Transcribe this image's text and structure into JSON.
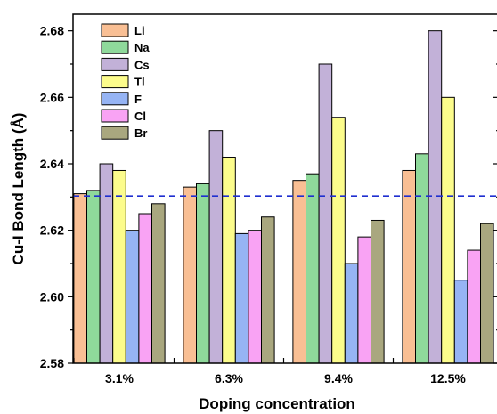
{
  "chart_data": {
    "type": "bar",
    "xlabel": "Doping concentration",
    "ylabel": "Cu-I Bond Length (Å)",
    "categories": [
      "3.1%",
      "6.3%",
      "9.4%",
      "12.5%"
    ],
    "ylim": [
      2.58,
      2.685
    ],
    "yticks": [
      "2.58",
      "2.60",
      "2.62",
      "2.64",
      "2.66",
      "2.68"
    ],
    "legend_position": "top-left",
    "grid": false,
    "reference_line": {
      "y": 2.6303,
      "style": "dashed",
      "color": "#1f2fd0"
    },
    "series": [
      {
        "name": "Li",
        "color": "#f9bf94",
        "values": [
          2.631,
          2.633,
          2.635,
          2.638
        ]
      },
      {
        "name": "Na",
        "color": "#8fd99b",
        "values": [
          2.632,
          2.634,
          2.637,
          2.643
        ]
      },
      {
        "name": "Cs",
        "color": "#c2b1d8",
        "values": [
          2.64,
          2.65,
          2.67,
          2.68
        ]
      },
      {
        "name": "Tl",
        "color": "#fcfc8c",
        "values": [
          2.638,
          2.642,
          2.654,
          2.66
        ]
      },
      {
        "name": "F",
        "color": "#96b4f4",
        "values": [
          2.62,
          2.619,
          2.61,
          2.605
        ]
      },
      {
        "name": "Cl",
        "color": "#f9a3f4",
        "values": [
          2.625,
          2.62,
          2.618,
          2.614
        ]
      },
      {
        "name": "Br",
        "color": "#a9a77f",
        "values": [
          2.628,
          2.624,
          2.623,
          2.622
        ]
      }
    ]
  }
}
